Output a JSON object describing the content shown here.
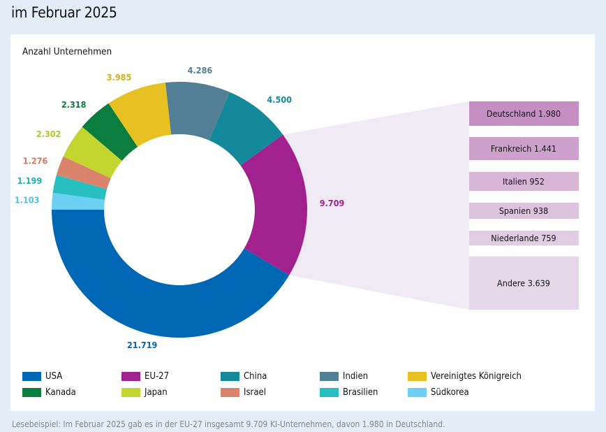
{
  "title": "im Februar 2025",
  "footnote": "Lesebeispiel: Im Februar 2025 gab es in der EU-27 insgesamt 9.709 KI-Unternehmen, davon 1.980 in Deutschland.",
  "chart_data": {
    "type": "pie",
    "subtype": "donut",
    "ylabel": "Anzahl Unternehmen",
    "series": [
      {
        "name": "USA",
        "value": 21719,
        "label": "21.719",
        "color": "#0067b4",
        "label_color": "#0067b4"
      },
      {
        "name": "Südkorea",
        "value": 1103,
        "label": "1.103",
        "color": "#6dd0f2",
        "label_color": "#4cc0ea"
      },
      {
        "name": "Brasilien",
        "value": 1199,
        "label": "1.199",
        "color": "#27bfc0",
        "label_color": "#1fb2b4"
      },
      {
        "name": "Israel",
        "value": 1276,
        "label": "1.276",
        "color": "#d9826c",
        "label_color": "#d07560"
      },
      {
        "name": "Japan",
        "value": 2302,
        "label": "2.302",
        "color": "#c2d62f",
        "label_color": "#b3c52b"
      },
      {
        "name": "Kanada",
        "value": 2318,
        "label": "2.318",
        "color": "#0b7d3e",
        "label_color": "#0b7d3e"
      },
      {
        "name": "Vereinigtes Königreich",
        "value": 3985,
        "label": "3.985",
        "color": "#e7c021",
        "label_color": "#d4b11b"
      },
      {
        "name": "Indien",
        "value": 4286,
        "label": "4.286",
        "color": "#527f95",
        "label_color": "#527f95"
      },
      {
        "name": "China",
        "value": 4500,
        "label": "4.500",
        "color": "#13899a",
        "label_color": "#13899a"
      },
      {
        "name": "EU-27",
        "value": 9709,
        "label": "9.709",
        "color": "#a1228e",
        "label_color": "#a1228e"
      }
    ],
    "legend": [
      "USA",
      "EU-27",
      "China",
      "Indien",
      "Vereinigtes Königreich",
      "Kanada",
      "Japan",
      "Israel",
      "Brasilien",
      "Südkorea"
    ],
    "breakdown": {
      "of": "EU-27",
      "items": [
        {
          "name": "Deutschland",
          "value": 1980,
          "label": "Deutschland 1.980",
          "color": "#c68fc3"
        },
        {
          "name": "Frankreich",
          "value": 1441,
          "label": "Frankreich 1.441",
          "color": "#cda1cb"
        },
        {
          "name": "Italien",
          "value": 952,
          "label": "Italien 952",
          "color": "#d6b5d5"
        },
        {
          "name": "Spanien",
          "value": 938,
          "label": "Spanien 938",
          "color": "#ddc4dd"
        },
        {
          "name": "Niederlande",
          "value": 759,
          "label": "Niederlande 759",
          "color": "#e1cde2"
        },
        {
          "name": "Andere",
          "value": 3639,
          "label": "Andere 3.639",
          "color": "#e5d8e8"
        }
      ]
    }
  }
}
